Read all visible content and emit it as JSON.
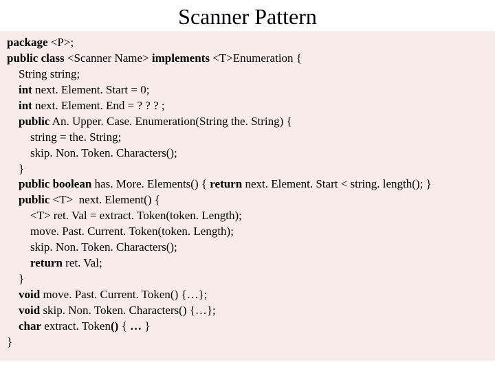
{
  "title": "Scanner Pattern",
  "code": {
    "bg": "#f8eceb",
    "fg": "#000000",
    "fontsize": 17,
    "lines": [
      [
        {
          "t": "package",
          "b": true
        },
        {
          "t": " <P>;",
          "b": false
        }
      ],
      [
        {
          "t": "public class ",
          "b": true
        },
        {
          "t": "<Scanner Name> ",
          "b": false
        },
        {
          "t": "implements ",
          "b": true
        },
        {
          "t": "<T>Enumeration {",
          "b": false
        }
      ],
      [
        {
          "t": "    String string;",
          "b": false
        }
      ],
      [
        {
          "t": "    ",
          "b": false
        },
        {
          "t": "int",
          "b": true
        },
        {
          "t": " next. Element. Start = 0;",
          "b": false
        }
      ],
      [
        {
          "t": "    ",
          "b": false
        },
        {
          "t": "int",
          "b": true
        },
        {
          "t": " next. Element. End = ? ? ? ;",
          "b": false
        }
      ],
      [
        {
          "t": "    ",
          "b": false
        },
        {
          "t": "public",
          "b": true
        },
        {
          "t": " An. Upper. Case. Enumeration(String the. String) {",
          "b": false
        }
      ],
      [
        {
          "t": "        string = the. String;",
          "b": false
        }
      ],
      [
        {
          "t": "        skip. Non. Token. Characters();",
          "b": false
        }
      ],
      [
        {
          "t": "    }",
          "b": false
        }
      ],
      [
        {
          "t": "    ",
          "b": false
        },
        {
          "t": "public boolean",
          "b": true
        },
        {
          "t": " has. More. Elements() { ",
          "b": false
        },
        {
          "t": "return",
          "b": true
        },
        {
          "t": " next. Element. Start < string. length(); }",
          "b": false
        }
      ],
      [
        {
          "t": "    ",
          "b": false
        },
        {
          "t": "public",
          "b": true
        },
        {
          "t": " <T>  next. Element() {",
          "b": false
        }
      ],
      [
        {
          "t": "        <T> ret. Val = extract. Token(token. Length);",
          "b": false
        }
      ],
      [
        {
          "t": "        move. Past. Current. Token(token. Length);",
          "b": false
        }
      ],
      [
        {
          "t": "        skip. Non. Token. Characters();",
          "b": false
        }
      ],
      [
        {
          "t": "        ",
          "b": false
        },
        {
          "t": "return",
          "b": true
        },
        {
          "t": " ret. Val;",
          "b": false
        }
      ],
      [
        {
          "t": "    }",
          "b": false
        }
      ],
      [
        {
          "t": "    ",
          "b": false
        },
        {
          "t": "void",
          "b": true
        },
        {
          "t": " move. Past. Current. Token() {…};",
          "b": false
        }
      ],
      [
        {
          "t": "    ",
          "b": false
        },
        {
          "t": "void",
          "b": true
        },
        {
          "t": " skip. Non. Token. Characters() {…};",
          "b": false
        }
      ],
      [
        {
          "t": "    ",
          "b": false
        },
        {
          "t": "char",
          "b": true
        },
        {
          "t": " extract. Token",
          "b": false
        },
        {
          "t": "()",
          "b": true
        },
        {
          "t": " {",
          "b": false
        },
        {
          "t": " …",
          "b": true
        },
        {
          "t": " }",
          "b": false
        }
      ],
      [
        {
          "t": "}",
          "b": false
        }
      ]
    ]
  }
}
